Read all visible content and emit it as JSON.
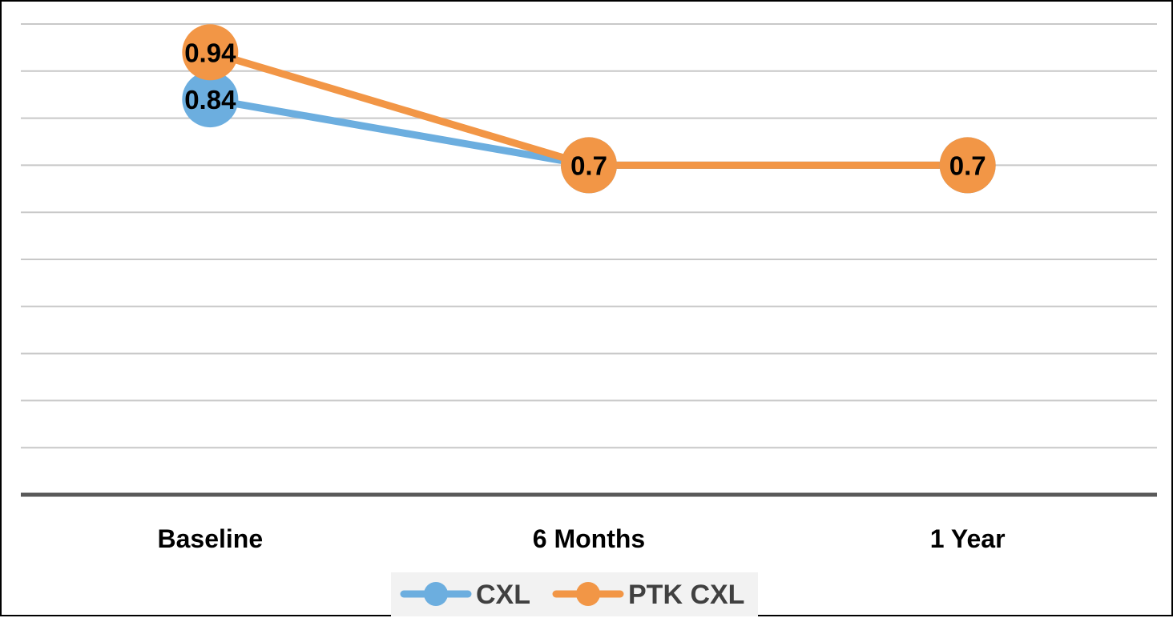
{
  "chart_data": {
    "type": "line",
    "categories": [
      "Baseline",
      "6 Months",
      "1 Year"
    ],
    "series": [
      {
        "name": "CXL",
        "values": [
          0.84,
          0.7,
          0.7
        ],
        "labels": [
          "0.84",
          "",
          ""
        ],
        "color": "#6CAEDF"
      },
      {
        "name": "PTK CXL",
        "values": [
          0.94,
          0.7,
          0.7
        ],
        "labels": [
          "0.94",
          "0.7",
          "0.7"
        ],
        "color": "#F29646"
      }
    ],
    "ylim": [
      0,
      1
    ],
    "grid": true,
    "legend": "bottom",
    "title": "",
    "xlabel": "",
    "ylabel": ""
  }
}
